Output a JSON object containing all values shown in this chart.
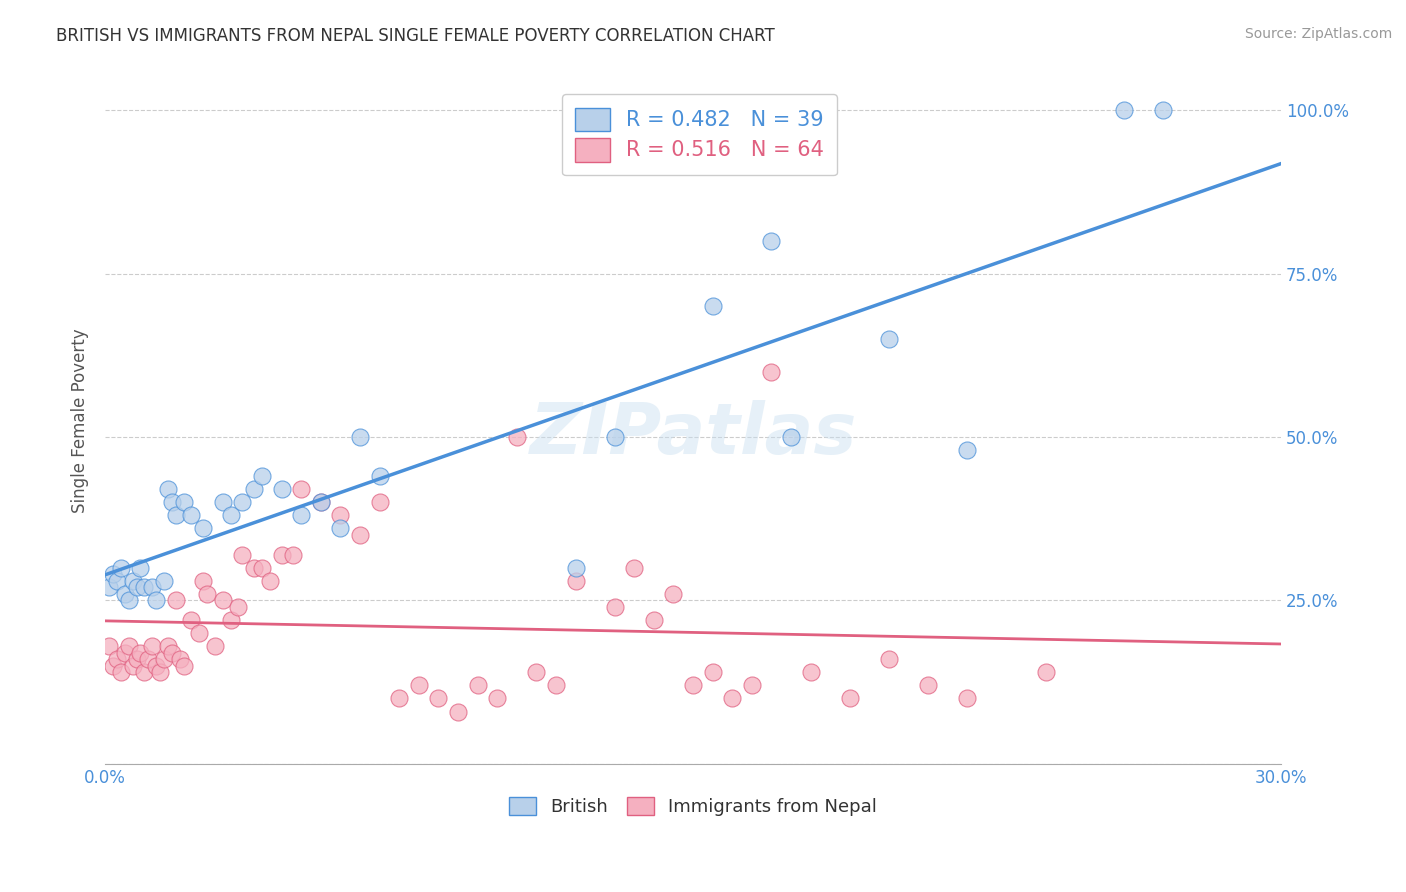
{
  "title": "BRITISH VS IMMIGRANTS FROM NEPAL SINGLE FEMALE POVERTY CORRELATION CHART",
  "source": "Source: ZipAtlas.com",
  "ylabel": "Single Female Poverty",
  "xlim": [
    0.0,
    0.3
  ],
  "ylim": [
    0.0,
    1.05
  ],
  "blue_R": 0.482,
  "blue_N": 39,
  "pink_R": 0.516,
  "pink_N": 64,
  "blue_color": "#b8d0ea",
  "pink_color": "#f5b0c0",
  "blue_line_color": "#4a90d9",
  "pink_line_color": "#e06080",
  "watermark": "ZIPatlas",
  "blue_scatter_x": [
    0.001,
    0.002,
    0.003,
    0.004,
    0.005,
    0.006,
    0.007,
    0.008,
    0.009,
    0.01,
    0.012,
    0.013,
    0.015,
    0.016,
    0.017,
    0.018,
    0.02,
    0.022,
    0.025,
    0.03,
    0.032,
    0.035,
    0.038,
    0.04,
    0.045,
    0.05,
    0.055,
    0.06,
    0.065,
    0.07,
    0.12,
    0.13,
    0.155,
    0.17,
    0.175,
    0.2,
    0.22,
    0.26,
    0.27
  ],
  "blue_scatter_y": [
    0.27,
    0.29,
    0.28,
    0.3,
    0.26,
    0.25,
    0.28,
    0.27,
    0.3,
    0.27,
    0.27,
    0.25,
    0.28,
    0.42,
    0.4,
    0.38,
    0.4,
    0.38,
    0.36,
    0.4,
    0.38,
    0.4,
    0.42,
    0.44,
    0.42,
    0.38,
    0.4,
    0.36,
    0.5,
    0.44,
    0.3,
    0.5,
    0.7,
    0.8,
    0.5,
    0.65,
    0.48,
    1.0,
    1.0
  ],
  "pink_scatter_x": [
    0.001,
    0.002,
    0.003,
    0.004,
    0.005,
    0.006,
    0.007,
    0.008,
    0.009,
    0.01,
    0.011,
    0.012,
    0.013,
    0.014,
    0.015,
    0.016,
    0.017,
    0.018,
    0.019,
    0.02,
    0.022,
    0.024,
    0.025,
    0.026,
    0.028,
    0.03,
    0.032,
    0.034,
    0.035,
    0.038,
    0.04,
    0.042,
    0.045,
    0.048,
    0.05,
    0.055,
    0.06,
    0.065,
    0.07,
    0.075,
    0.08,
    0.085,
    0.09,
    0.095,
    0.1,
    0.105,
    0.11,
    0.115,
    0.12,
    0.13,
    0.135,
    0.14,
    0.145,
    0.15,
    0.155,
    0.16,
    0.165,
    0.17,
    0.18,
    0.19,
    0.2,
    0.21,
    0.22,
    0.24
  ],
  "pink_scatter_y": [
    0.18,
    0.15,
    0.16,
    0.14,
    0.17,
    0.18,
    0.15,
    0.16,
    0.17,
    0.14,
    0.16,
    0.18,
    0.15,
    0.14,
    0.16,
    0.18,
    0.17,
    0.25,
    0.16,
    0.15,
    0.22,
    0.2,
    0.28,
    0.26,
    0.18,
    0.25,
    0.22,
    0.24,
    0.32,
    0.3,
    0.3,
    0.28,
    0.32,
    0.32,
    0.42,
    0.4,
    0.38,
    0.35,
    0.4,
    0.1,
    0.12,
    0.1,
    0.08,
    0.12,
    0.1,
    0.5,
    0.14,
    0.12,
    0.28,
    0.24,
    0.3,
    0.22,
    0.26,
    0.12,
    0.14,
    0.1,
    0.12,
    0.6,
    0.14,
    0.1,
    0.16,
    0.12,
    0.1,
    0.14
  ]
}
